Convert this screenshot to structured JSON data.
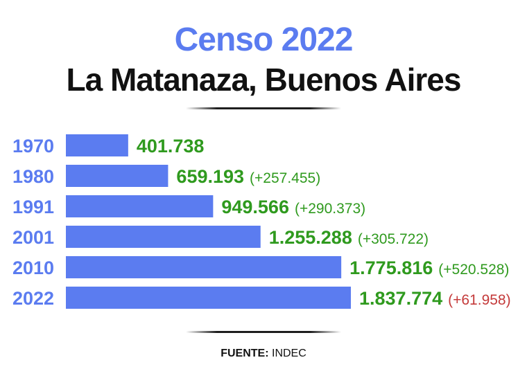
{
  "title": "Censo 2022",
  "subtitle": "La Matanaza, Buenos Aires",
  "source": {
    "label": "FUENTE:",
    "value": "INDEC"
  },
  "colors": {
    "bar": "#5b7cf0",
    "title": "#5b7cf0",
    "value": "#2f9a1e",
    "change_positive": "#2f9a1e",
    "change_last": "#c43a3a",
    "year": "#5b7cf0"
  },
  "chart_data": {
    "type": "bar",
    "orientation": "horizontal",
    "categories": [
      "1970",
      "1980",
      "1991",
      "2001",
      "2010",
      "2022"
    ],
    "values": [
      401738,
      659193,
      949566,
      1255288,
      1775816,
      1837774
    ],
    "value_labels": [
      "401.738",
      "659.193",
      "949.566",
      "1.255.288",
      "1.775.816",
      "1.837.774"
    ],
    "change_labels": [
      "",
      "(+257.455)",
      "(+290.373)",
      "(+305.722)",
      "(+520.528)",
      "(+61.958)"
    ],
    "title": "Censo 2022",
    "xlabel": "",
    "ylabel": "",
    "xlim": [
      0,
      1900000
    ],
    "grid": false
  }
}
